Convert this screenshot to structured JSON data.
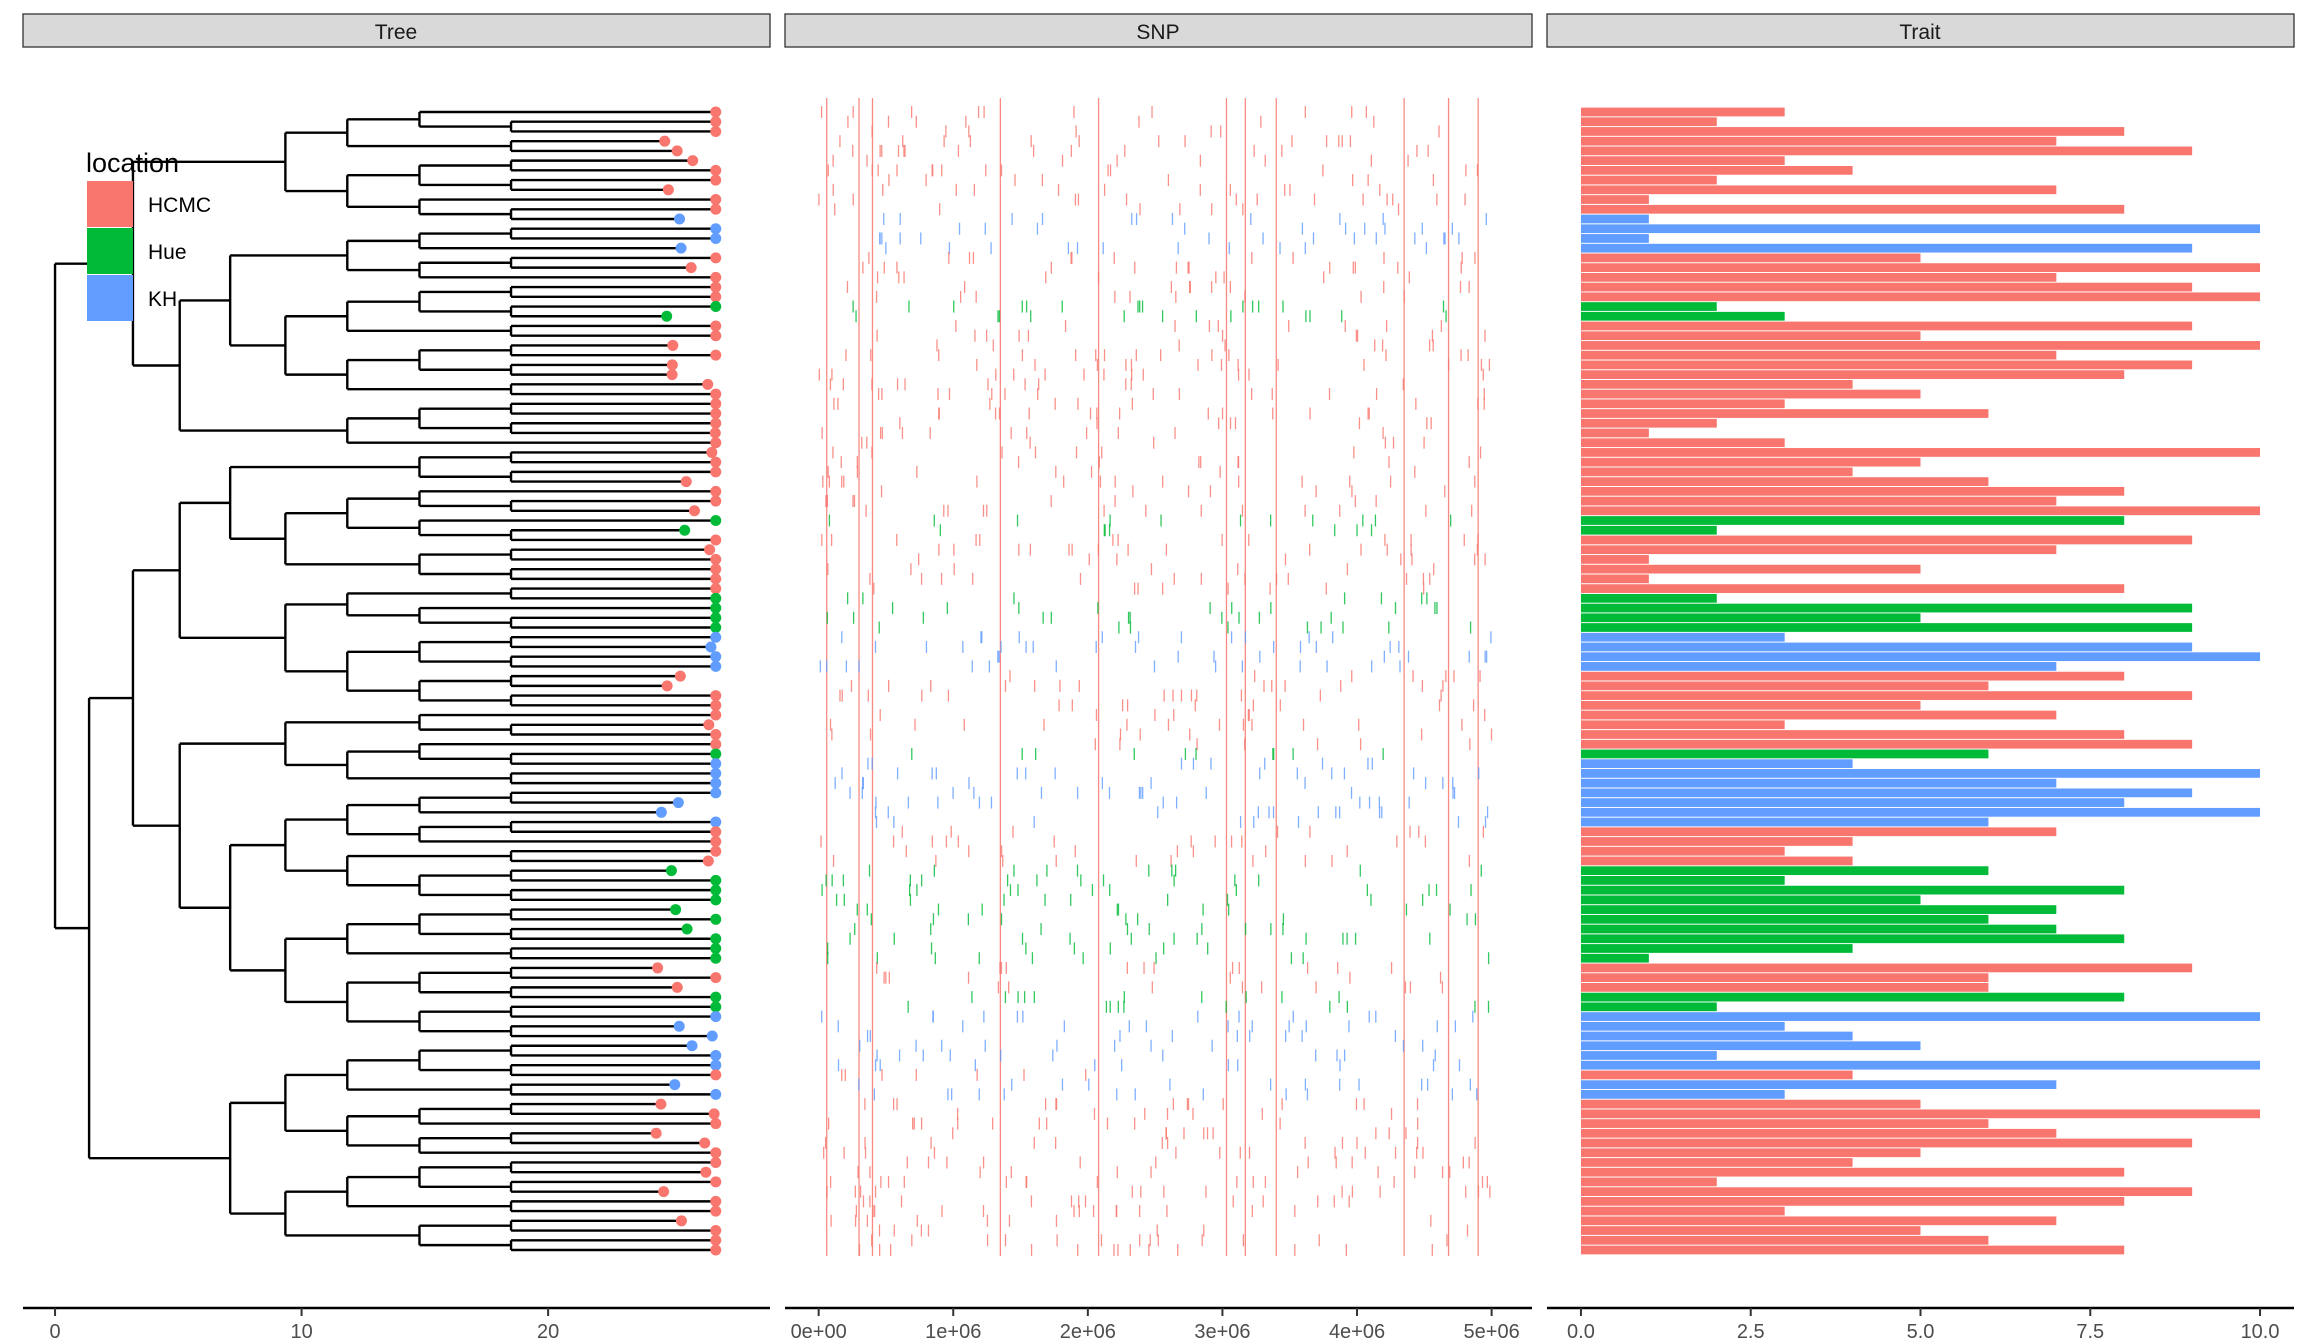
{
  "colors": {
    "HCMC": "#F8766D",
    "Hue": "#00BA38",
    "KH": "#619CFF"
  },
  "chart_data": [
    {
      "panel": "Tree",
      "type": "tree",
      "title": "Tree",
      "x_ticks": [
        "0",
        "10",
        "20"
      ],
      "xlim": [
        -1.3,
        29
      ],
      "tips": 118,
      "tip_distance": 26.8,
      "groups": [
        {
          "loc": "HCMC",
          "n": 11
        },
        {
          "loc": "KH",
          "n": 4
        },
        {
          "loc": "HCMC",
          "n": 5
        },
        {
          "loc": "Hue",
          "n": 2
        },
        {
          "loc": "HCMC",
          "n": 20
        },
        {
          "loc": "Hue",
          "n": 2
        },
        {
          "loc": "HCMC",
          "n": 6
        },
        {
          "loc": "Hue",
          "n": 4
        },
        {
          "loc": "KH",
          "n": 4
        },
        {
          "loc": "HCMC",
          "n": 8
        },
        {
          "loc": "Hue",
          "n": 1
        },
        {
          "loc": "KH",
          "n": 7
        },
        {
          "loc": "HCMC",
          "n": 4
        },
        {
          "loc": "Hue",
          "n": 10
        },
        {
          "loc": "HCMC",
          "n": 3
        },
        {
          "loc": "Hue",
          "n": 2
        },
        {
          "loc": "KH",
          "n": 6
        },
        {
          "loc": "HCMC",
          "n": 1
        },
        {
          "loc": "KH",
          "n": 2
        },
        {
          "loc": "HCMC",
          "n": 16
        }
      ]
    },
    {
      "panel": "SNP",
      "type": "scatter",
      "title": "SNP",
      "x_ticks": [
        "0e+00",
        "1e+06",
        "2e+06",
        "3e+06",
        "4e+06",
        "5e+06"
      ],
      "xlim": [
        -250000,
        5300000
      ],
      "shared_sites": [
        60000,
        300000,
        400000,
        1350000,
        2080000,
        3030000,
        3170000,
        3400000,
        4350000,
        4680000,
        4900000
      ]
    },
    {
      "panel": "Trait",
      "type": "bar",
      "title": "Trait",
      "x_ticks": [
        "0.0",
        "2.5",
        "5.0",
        "7.5",
        "10.0"
      ],
      "xlim": [
        -0.5,
        10.5
      ],
      "values": [
        3,
        2,
        8,
        7,
        9,
        3,
        4,
        2,
        7,
        1,
        8,
        1,
        10,
        1,
        9,
        5,
        10,
        7,
        9,
        10,
        2,
        3,
        9,
        5,
        10,
        7,
        9,
        8,
        4,
        5,
        3,
        6,
        2,
        1,
        3,
        10,
        5,
        4,
        6,
        8,
        7,
        10,
        8,
        2,
        9,
        7,
        1,
        5,
        1,
        8,
        2,
        9,
        5,
        9,
        3,
        9,
        10,
        7,
        8,
        6,
        9,
        5,
        7,
        3,
        8,
        9,
        6,
        4,
        10,
        7,
        9,
        8,
        10,
        6,
        7,
        4,
        3,
        4,
        6,
        3,
        8,
        5,
        7,
        6,
        7,
        8,
        4,
        1,
        9,
        6,
        6,
        8,
        2,
        10,
        3,
        4,
        5,
        2,
        10,
        4,
        7,
        3,
        5,
        10,
        6,
        7,
        9,
        5,
        4,
        8,
        2,
        9,
        8,
        3,
        7,
        5,
        6,
        8
      ],
      "legend": {
        "title": "location",
        "entries": [
          "HCMC",
          "Hue",
          "KH"
        ],
        "position": "top-left"
      }
    }
  ]
}
